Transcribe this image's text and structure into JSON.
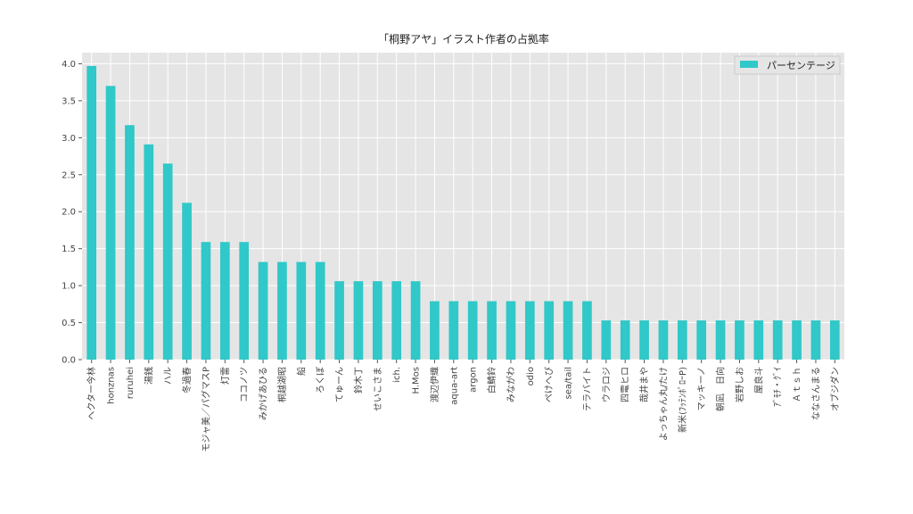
{
  "chart_data": {
    "type": "bar",
    "title": "「桐野アヤ」イラスト作者の占拠率",
    "xlabel": "",
    "ylabel": "",
    "ylim": [
      0,
      4.15
    ],
    "yticks": [
      "0.0",
      "0.5",
      "1.0",
      "1.5",
      "2.0",
      "2.5",
      "3.0",
      "3.5",
      "4.0"
    ],
    "grid": true,
    "legend_position": "top-right",
    "bar_color": "#30c8c8",
    "background_color": "#e5e5e5",
    "categories": [
      "ヘクター今林",
      "honznas",
      "ruruhei",
      "湯銭",
      "ハル",
      "冬過春",
      "モジャ美／パグマスP",
      "灯雷",
      "ココノツ",
      "みかげあひる",
      "桐越湖昭",
      "船",
      "ろくぼ",
      "てゅーん",
      "鈴木丁",
      "せいこさま",
      "ich.",
      "H.Mos",
      "渡辺伊織",
      "aqua-art",
      "argon",
      "白鯖鈴",
      "みながわ",
      "odio",
      "ぺけへぴ",
      "sea/tail",
      "テラバイト",
      "ウラロジ",
      "四電ヒロ",
      "哉井まや",
      "よっちゃん丸/たけ",
      "新米(ﾌｯﾃﾝﾎﾟﾛｰP)",
      "マッキーノ",
      "朝凪　日向",
      "岩野しお",
      "屋良斗",
      "ｱﾞﾓﾁ・ｸﾞｲ",
      "Ａｔｓｈ",
      "ななさんまる",
      "オブジダン"
    ],
    "series": [
      {
        "name": "パーセンテージ",
        "values": [
          3.97,
          3.7,
          3.17,
          2.91,
          2.65,
          2.12,
          1.59,
          1.59,
          1.59,
          1.32,
          1.32,
          1.32,
          1.32,
          1.06,
          1.06,
          1.06,
          1.06,
          1.06,
          0.79,
          0.79,
          0.79,
          0.79,
          0.79,
          0.79,
          0.79,
          0.79,
          0.79,
          0.53,
          0.53,
          0.53,
          0.53,
          0.53,
          0.53,
          0.53,
          0.53,
          0.53,
          0.53,
          0.53,
          0.53,
          0.53
        ]
      }
    ]
  }
}
